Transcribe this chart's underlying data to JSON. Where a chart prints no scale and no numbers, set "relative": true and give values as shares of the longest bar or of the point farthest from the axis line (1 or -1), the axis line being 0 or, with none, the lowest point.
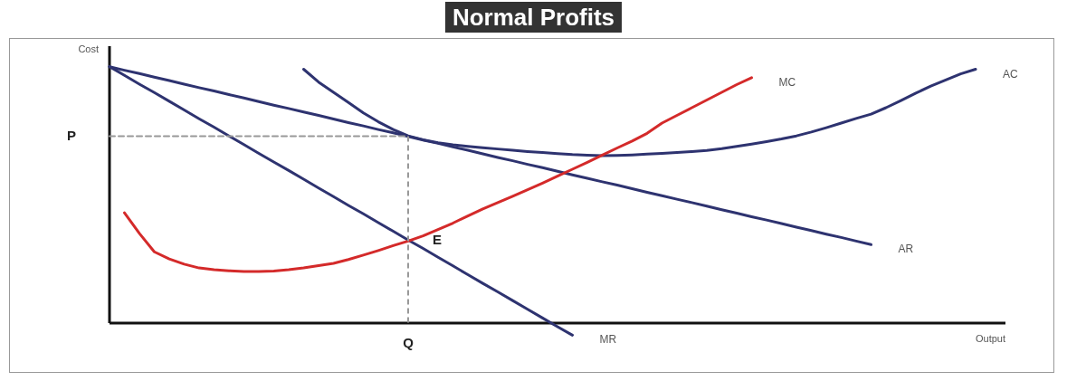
{
  "chart_data": {
    "type": "line",
    "title": "Normal Profits",
    "xlabel": "Output",
    "ylabel": "Cost",
    "relative": true,
    "legend": false,
    "marker": "none",
    "categories": [
      null,
      null,
      null,
      null,
      null,
      null,
      null,
      null,
      null,
      null,
      null,
      null,
      null,
      null,
      null,
      null,
      null,
      null,
      null,
      null,
      null,
      null,
      null,
      null,
      null,
      null,
      null,
      null,
      null,
      null,
      null,
      null,
      null,
      null,
      null,
      null,
      null,
      null,
      null,
      null,
      null,
      null,
      null,
      null,
      null,
      null,
      null,
      null,
      null,
      null,
      null,
      null,
      null,
      null,
      null,
      null,
      null,
      null,
      null,
      null,
      null
    ],
    "series": [
      {
        "name": "MR",
        "color": "#2e3370",
        "values": [
          1,
          0.966,
          0.932,
          0.899,
          0.865,
          0.831,
          0.797,
          0.764,
          0.73,
          0.696,
          0.662,
          0.628,
          0.595,
          0.561,
          0.527,
          0.493,
          0.459,
          0.426,
          0.392,
          0.358,
          0.324,
          0.291,
          0.257,
          0.223,
          0.189,
          0.155,
          0.122,
          0.088,
          0.054,
          0.02,
          -0.014,
          -0.047,
          null,
          null,
          null,
          null,
          null,
          null,
          null,
          null,
          null,
          null,
          null,
          null,
          null,
          null,
          null,
          null,
          null,
          null,
          null,
          null,
          null,
          null,
          null,
          null,
          null,
          null,
          null,
          null,
          null
        ]
      },
      {
        "name": "AR",
        "color": "#2e3370",
        "values": [
          1,
          0.986,
          0.973,
          0.959,
          0.946,
          0.932,
          0.918,
          0.905,
          0.891,
          0.878,
          0.864,
          0.85,
          0.837,
          0.823,
          0.81,
          0.796,
          0.782,
          0.769,
          0.755,
          0.742,
          0.728,
          0.714,
          0.701,
          0.687,
          0.674,
          0.66,
          0.646,
          0.633,
          0.619,
          0.606,
          0.592,
          0.578,
          0.565,
          0.551,
          0.538,
          0.524,
          0.51,
          0.497,
          0.483,
          0.47,
          0.456,
          0.442,
          0.429,
          0.415,
          0.402,
          0.388,
          0.374,
          0.361,
          0.347,
          0.334,
          0.32,
          0.306,
          null,
          null,
          null,
          null,
          null,
          null,
          null,
          null,
          null
        ]
      },
      {
        "name": "AC",
        "color": "#2e3370",
        "values": [
          null,
          null,
          null,
          null,
          null,
          null,
          null,
          null,
          null,
          null,
          null,
          null,
          null,
          0.99,
          0.94,
          0.9,
          0.86,
          0.82,
          0.785,
          0.755,
          0.73,
          0.715,
          0.703,
          0.695,
          0.689,
          0.684,
          0.679,
          0.674,
          0.669,
          0.665,
          0.661,
          0.657,
          0.655,
          0.653,
          0.654,
          0.656,
          0.659,
          0.662,
          0.665,
          0.669,
          0.673,
          0.68,
          0.689,
          0.698,
          0.708,
          0.718,
          0.73,
          0.745,
          0.762,
          0.78,
          0.798,
          0.815,
          0.84,
          0.868,
          0.897,
          0.924,
          0.948,
          0.972,
          0.99,
          null,
          null
        ]
      },
      {
        "name": "MC",
        "color": "#d42a2a",
        "values": [
          null,
          0.43,
          0.35,
          0.278,
          0.25,
          0.23,
          0.215,
          0.208,
          0.204,
          0.201,
          0.201,
          0.203,
          0.208,
          0.215,
          0.224,
          0.233,
          0.248,
          0.265,
          0.283,
          0.302,
          0.32,
          0.34,
          0.365,
          0.39,
          0.418,
          0.445,
          0.47,
          0.495,
          0.52,
          0.546,
          0.573,
          0.6,
          0.627,
          0.655,
          0.683,
          0.71,
          0.74,
          0.78,
          0.81,
          0.84,
          0.87,
          0.9,
          0.93,
          0.957,
          null,
          null,
          null,
          null,
          null,
          null,
          null,
          null,
          null,
          null,
          null,
          null,
          null,
          null,
          null,
          null,
          null
        ]
      },
      {
        "color": "#999999",
        "line_style": "dashed",
        "values": [
          0.729,
          0.729,
          0.729,
          0.729,
          0.729,
          0.729,
          0.729,
          0.729,
          0.729,
          0.729,
          0.729,
          0.729,
          0.729,
          0.729,
          0.729,
          0.729,
          0.729,
          0.729,
          0.729,
          0.729,
          0.729,
          null,
          null,
          null,
          null,
          null,
          null,
          null,
          null,
          null,
          null,
          null,
          null,
          null,
          null,
          null,
          null,
          null,
          null,
          null,
          null,
          null,
          null,
          null,
          null,
          null,
          null,
          null,
          null,
          null,
          null,
          null,
          null,
          null,
          null,
          null,
          null,
          null,
          null,
          null,
          null
        ]
      }
    ],
    "annotations": [
      "P",
      "Q",
      "E"
    ]
  }
}
